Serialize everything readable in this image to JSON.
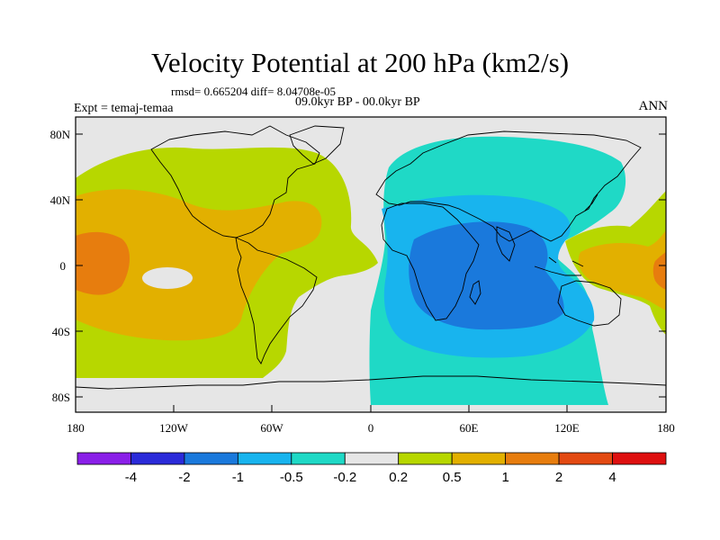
{
  "header": {
    "title": "Velocity Potential at 200 hPa (km2/s)",
    "stats": "rmsd= 0.665204 diff= 8.04708e-05",
    "period": "09.0kyr BP - 00.0kyr BP",
    "experiment": "Expt = temaj-temaa",
    "season": "ANN"
  },
  "axes": {
    "lat_labels": [
      "80N",
      "40N",
      "0",
      "40S",
      "80S"
    ],
    "lon_labels": [
      "180",
      "120W",
      "60W",
      "0",
      "60E",
      "120E",
      "180"
    ]
  },
  "colorbar": {
    "colors": [
      "#8a1fe8",
      "#2b2bd9",
      "#1a79dc",
      "#18b4ee",
      "#1fd9c6",
      "#e6e6e6",
      "#b7d700",
      "#e2b000",
      "#e77d0e",
      "#e34a12",
      "#de1010"
    ],
    "labels": [
      "-4",
      "-2",
      "-1",
      "-0.5",
      "-0.2",
      "0.2",
      "0.5",
      "1",
      "2",
      "4"
    ]
  },
  "map_colors": {
    "background": "#e6e6e6",
    "lev_0_2_to_0_5": "#b7d700",
    "lev_0_5_to_1": "#e2b000",
    "lev_1_to_2": "#e77d0e",
    "lev_neg0_5_to_neg0_2": "#1fd9c6",
    "lev_neg1_to_neg0_5": "#18b4ee",
    "lev_neg2_to_neg1": "#1a79dc",
    "coast": "#000000"
  }
}
